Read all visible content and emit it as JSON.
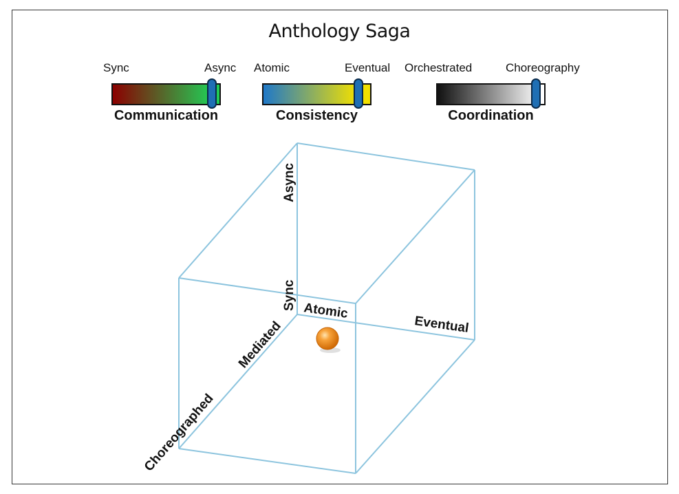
{
  "title": "Anthology Saga",
  "gauges": [
    {
      "name": "Communication",
      "left_label": "Sync",
      "right_label": "Async",
      "value": 0.92,
      "gradient": [
        "#8b0000",
        "#22cc55"
      ],
      "tail_color": "#22cc55"
    },
    {
      "name": "Consistency",
      "left_label": "Atomic",
      "right_label": "Eventual",
      "value": 0.88,
      "gradient": [
        "#1f78c8",
        "#f2e000"
      ],
      "tail_color": "#f2e000"
    },
    {
      "name": "Coordination",
      "left_label": "Orchestrated",
      "right_label": "Choreography",
      "value": 0.91,
      "gradient": [
        "#111111",
        "#f0f0f0"
      ],
      "tail_color": "#ffffff"
    }
  ],
  "cube": {
    "edge_color": "#8cc4de",
    "labels": {
      "async": "Async",
      "sync": "Sync",
      "atomic": "Atomic",
      "eventual": "Eventual",
      "mediated": "Mediated",
      "choreographed": "Choreographed"
    },
    "marker_color": "#f28c1a"
  }
}
